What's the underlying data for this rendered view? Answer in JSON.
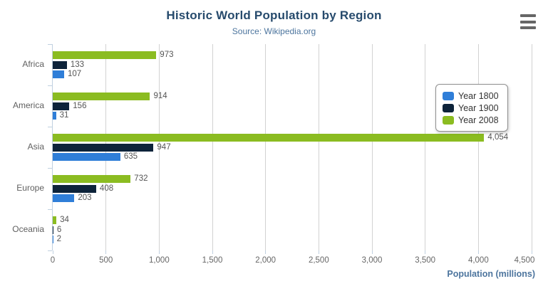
{
  "header": {
    "menu_icon": "hamburger-icon"
  },
  "chart_data": {
    "type": "bar",
    "orientation": "horizontal",
    "title": "Historic World Population by Region",
    "subtitle": "Source: Wikipedia.org",
    "categories": [
      "Africa",
      "America",
      "Asia",
      "Europe",
      "Oceania"
    ],
    "series": [
      {
        "name": "Year 1800",
        "color": "#2f7ed8",
        "values": [
          107,
          31,
          635,
          203,
          2
        ]
      },
      {
        "name": "Year 1900",
        "color": "#0d233a",
        "values": [
          133,
          156,
          947,
          408,
          6
        ]
      },
      {
        "name": "Year 2008",
        "color": "#8bbc21",
        "values": [
          973,
          914,
          4054,
          732,
          34
        ]
      }
    ],
    "bar_row_order_top_to_bottom": [
      "Year 2008",
      "Year 1900",
      "Year 1800"
    ],
    "xlabel": "Population (millions)",
    "ylabel": "",
    "xlim": [
      0,
      4500
    ],
    "x_ticks": [
      0,
      500,
      1000,
      1500,
      2000,
      2500,
      3000,
      3500,
      4000,
      4500
    ],
    "grid": true,
    "data_labels": true,
    "legend_position": "right-top",
    "axis_colors": {
      "grid_line": "#d2d2d2",
      "category_axis_line": "#c0d0e0",
      "tick_label": "#666666",
      "category_label": "#606060",
      "data_label": "#555555",
      "title": "#274b6d",
      "subtitle": "#4d759e",
      "axis_title": "#4d759e"
    }
  }
}
